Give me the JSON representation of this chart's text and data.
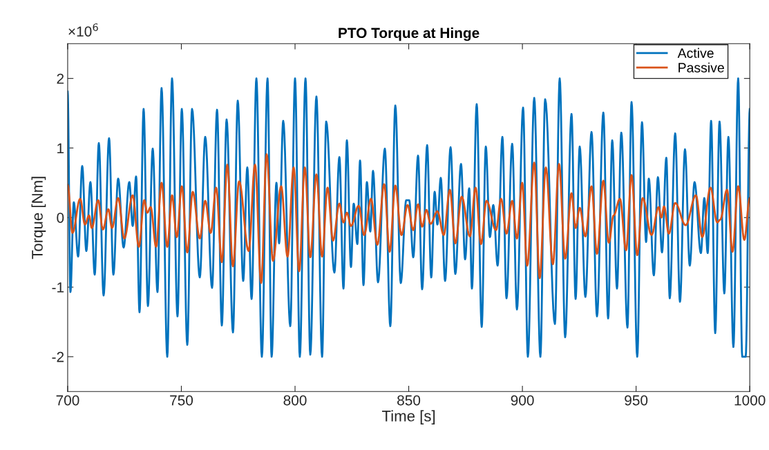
{
  "chart_data": {
    "type": "line",
    "title": "PTO Torque at Hinge",
    "xlabel": "Time [s]",
    "ylabel": "Torque [Nm]",
    "annotations": [
      "×10$^{6}$"
    ],
    "xlim": [
      700,
      1000
    ],
    "xticks": [
      700,
      750,
      800,
      850,
      900,
      950,
      1000
    ],
    "ylim": [
      -2.5,
      2.5
    ],
    "yticks": [
      -2,
      -1,
      0,
      1,
      2
    ],
    "legend": "top right",
    "grid": false,
    "line_style": "solid",
    "marker": "none",
    "series": [
      {
        "name": "Active",
        "color": "#0072bd",
        "x": [
          700,
          701.2,
          702.7,
          704.6,
          706.4,
          708.2,
          710.0,
          711.9,
          713.7,
          715.8,
          718.2,
          720.1,
          722.2,
          724.6,
          727.1,
          728.6,
          730.1,
          731.6,
          733.4,
          735.3,
          737.4,
          739.5,
          741.3,
          743.8,
          745.9,
          748.3,
          750.2,
          752.6,
          754.7,
          758.1,
          760.5,
          763.5,
          765.7,
          767.8,
          769.9,
          772.7,
          774.8,
          777.2,
          779.0,
          780.9,
          783.0,
          785.4,
          787.9,
          789.7,
          791.8,
          793.0,
          794.8,
          797.9,
          800.0,
          802.1,
          804.6,
          806.7,
          809.4,
          811.9,
          813.7,
          817.3,
          819.5,
          821.3,
          822.8,
          824.6,
          825.8,
          827.4,
          828.6,
          830.1,
          831.6,
          833.1,
          834.3,
          836.5,
          839.5,
          841.9,
          844.1,
          846.5,
          848.9,
          850.2,
          852.0,
          854.1,
          855.9,
          858.1,
          859.9,
          861.4,
          862.6,
          864.1,
          866.0,
          868.4,
          870.5,
          873.0,
          874.8,
          876.6,
          877.8,
          879.9,
          882.1,
          883.9,
          885.7,
          887.2,
          889.1,
          891.2,
          893.0,
          895.5,
          897.6,
          900.3,
          902.4,
          905.2,
          907.9,
          910.0,
          914.3,
          916.4,
          918.8,
          921.6,
          923.4,
          925.2,
          927.7,
          930.4,
          932.8,
          935.6,
          937.7,
          939.5,
          941.6,
          943.5,
          946.2,
          948.0,
          950.5,
          952.6,
          954.4,
          955.6,
          957.8,
          959.6,
          961.4,
          963.3,
          964.8,
          967.2,
          969.3,
          971.5,
          973.6,
          975.7,
          978.5,
          980.0,
          981.5,
          983.0,
          984.8,
          986.7,
          988.8,
          990.6,
          992.8,
          994.9,
          996.7,
          998.2,
          1000
        ],
        "values": [
          1.81,
          -1.07,
          0.22,
          -0.56,
          0.74,
          -0.48,
          0.51,
          -0.82,
          1.07,
          -1.12,
          1.14,
          -0.82,
          0.56,
          -0.43,
          0.51,
          -0.12,
          0.59,
          -1.36,
          1.56,
          -1.27,
          0.99,
          -1.07,
          1.86,
          -2.0,
          2.0,
          -1.42,
          1.56,
          -1.83,
          1.56,
          -0.86,
          1.16,
          -1.01,
          1.55,
          -1.55,
          1.41,
          -1.65,
          1.68,
          -0.91,
          0.72,
          -1.17,
          2.0,
          -2.0,
          2.0,
          -2.0,
          0.5,
          -0.37,
          1.39,
          -1.56,
          2.0,
          -2.0,
          2.0,
          -1.97,
          1.74,
          -2.0,
          1.38,
          -0.79,
          0.87,
          -1.02,
          1.11,
          -0.71,
          0.2,
          -0.38,
          0.82,
          -0.97,
          0.51,
          -0.2,
          0.67,
          -0.93,
          0.99,
          -1.56,
          1.61,
          -0.94,
          0.25,
          0.25,
          -0.57,
          0.89,
          -1.03,
          1.04,
          -0.86,
          0.37,
          -0.1,
          0.57,
          -0.91,
          1.01,
          -0.81,
          0.77,
          -0.6,
          0.42,
          -1.02,
          1.63,
          -1.57,
          1.02,
          -0.28,
          0.18,
          -0.69,
          1.16,
          -1.16,
          1.06,
          -1.32,
          1.58,
          -2.0,
          1.72,
          -2.0,
          1.7,
          -1.53,
          2.0,
          -1.72,
          1.49,
          -1.17,
          1.02,
          -1.14,
          1.23,
          -1.42,
          1.51,
          -1.45,
          1.11,
          -1.02,
          1.22,
          -1.58,
          1.66,
          -2.0,
          1.37,
          -0.35,
          0.56,
          -0.83,
          0.58,
          -0.5,
          0.86,
          -1.16,
          1.21,
          -1.21,
          0.98,
          -0.69,
          0.51,
          -0.51,
          0.28,
          -0.51,
          1.39,
          -1.66,
          1.38,
          -1.09,
          1.16,
          -1.86,
          2.0,
          -2.0,
          -2.0,
          1.56
        ]
      },
      {
        "name": "Passive",
        "color": "#d95319",
        "x": [
          700,
          702.1,
          705.5,
          707.6,
          709.4,
          710.6,
          713.4,
          715.5,
          717.9,
          719.5,
          722.2,
          724.9,
          728.6,
          731.3,
          733.7,
          735.0,
          736.5,
          738.9,
          741.3,
          743.8,
          745.9,
          748.0,
          750.2,
          752.6,
          755.0,
          758.1,
          760.5,
          762.9,
          765.3,
          767.8,
          770.2,
          772.7,
          775.4,
          779.6,
          782.4,
          785.1,
          787.5,
          790.3,
          793.9,
          796.7,
          799.4,
          801.8,
          804.3,
          806.7,
          809.4,
          811.9,
          814.3,
          816.7,
          819.5,
          821.3,
          822.8,
          824.6,
          828.0,
          830.4,
          833.4,
          836.2,
          839.2,
          841.6,
          844.1,
          846.8,
          849.5,
          852.0,
          854.1,
          855.9,
          857.8,
          859.6,
          862.6,
          865.4,
          868.1,
          870.5,
          873.3,
          876.9,
          879.4,
          881.8,
          884.2,
          888.4,
          890.6,
          893.0,
          895.5,
          897.6,
          899.9,
          902.1,
          905.2,
          907.6,
          910.3,
          913.4,
          916.1,
          918.8,
          921.6,
          923.4,
          925.2,
          927.7,
          930.4,
          932.8,
          935.6,
          938.0,
          940.1,
          942.9,
          945.6,
          948.0,
          950.5,
          952.9,
          956.8,
          959.9,
          961.1,
          962.3,
          964.4,
          967.2,
          971.8,
          976.3,
          979.1,
          982.7,
          985.7,
          987.0,
          990.0,
          992.4,
          994.9,
          997.6,
          1000
        ],
        "values": [
          0.47,
          -0.22,
          0.27,
          -0.1,
          0.03,
          -0.15,
          0.25,
          -0.17,
          0.12,
          -0.15,
          0.28,
          -0.3,
          0.32,
          -0.42,
          0.25,
          0.07,
          0.15,
          -0.42,
          0.5,
          -0.42,
          0.32,
          -0.28,
          0.45,
          -0.5,
          0.37,
          -0.3,
          0.24,
          -0.22,
          0.43,
          -0.64,
          0.76,
          -0.7,
          0.52,
          -0.48,
          0.76,
          -0.94,
          0.91,
          -0.62,
          0.45,
          -0.56,
          0.72,
          -0.77,
          0.72,
          -0.57,
          0.62,
          -0.56,
          0.43,
          -0.33,
          0.2,
          -0.07,
          0.07,
          -0.12,
          0.17,
          -0.25,
          0.27,
          -0.39,
          0.48,
          -0.49,
          0.46,
          -0.25,
          0.18,
          -0.18,
          0.19,
          -0.13,
          0.11,
          -0.09,
          0.09,
          -0.25,
          0.4,
          -0.37,
          0.3,
          -0.27,
          0.43,
          -0.38,
          0.24,
          -0.18,
          0.27,
          -0.23,
          0.24,
          -0.3,
          0.5,
          -0.69,
          0.79,
          -0.87,
          0.72,
          -0.67,
          0.77,
          -0.59,
          0.35,
          -0.15,
          0.14,
          -0.27,
          0.45,
          -0.52,
          0.53,
          -0.36,
          0.03,
          0.27,
          -0.47,
          0.61,
          -0.54,
          0.28,
          -0.25,
          0.15,
          0.0,
          0.16,
          -0.23,
          0.21,
          -0.11,
          0.32,
          -0.28,
          0.43,
          -0.07,
          -0.03,
          0.4,
          -0.49,
          0.45,
          -0.32,
          0.28
        ]
      }
    ]
  }
}
